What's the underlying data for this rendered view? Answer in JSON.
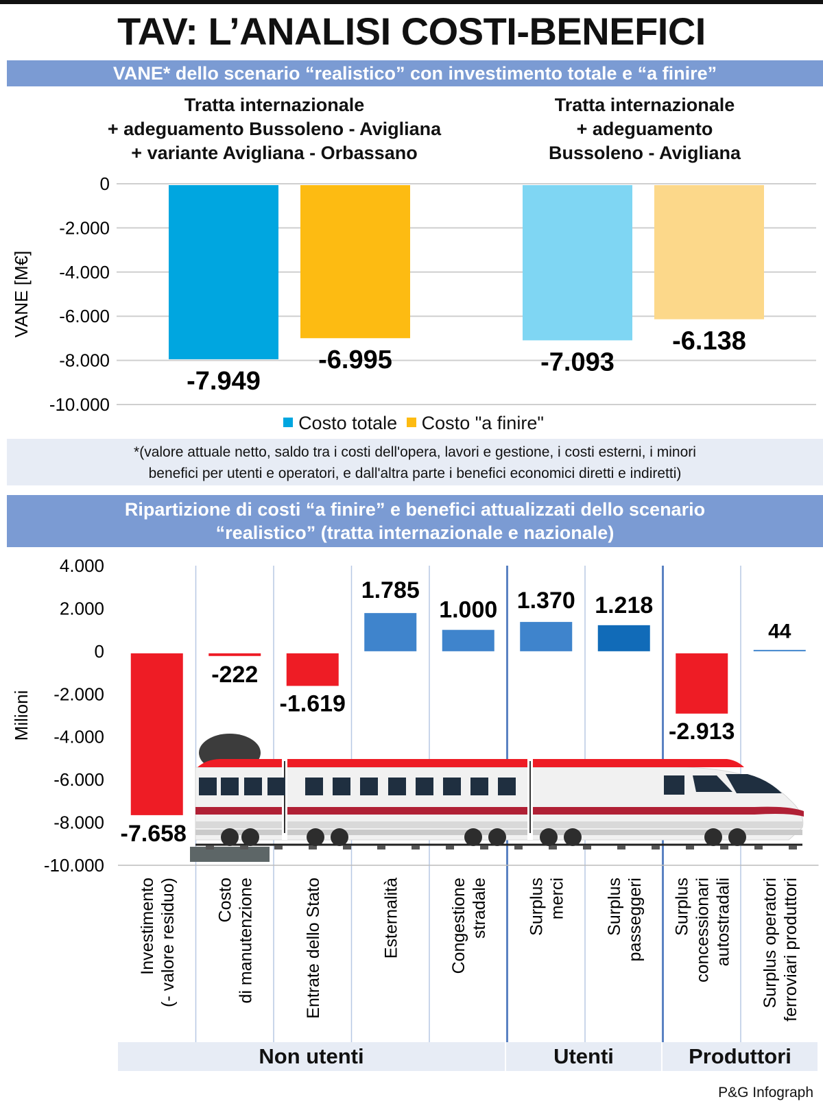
{
  "title": "TAV: L’ANALISI COSTI-BENEFICI",
  "section1": {
    "header": "VANE* dello scenario “realistico” con investimento totale e “a finire”",
    "footnote_line1": "*(valore attuale netto, saldo tra i costi dell'opera, lavori e gestione, i costi esterni, i minori",
    "footnote_line2": "benefici per utenti e operatori, e dall'altra parte i benefici economici diretti e indiretti)"
  },
  "section2": {
    "header_line1": "Ripartizione di costi “a finire” e benefici attualizzati dello scenario",
    "header_line2": "“realistico” (tratta internazionale e nazionale)"
  },
  "colors": {
    "band": "#7b9bd3",
    "costo_totale": "#00a6e0",
    "costo_a_finire": "#fdbb12",
    "costo_totale_light": "#7fd6f3",
    "costo_a_finire_light": "#fcd88a",
    "negative": "#ee1c25",
    "positive": "#3f84cc",
    "positive_dark": "#116bb8"
  },
  "credit": "P&G Infograph",
  "chart_data": [
    {
      "type": "bar",
      "ylabel": "VANE [M€]",
      "ylim": [
        -10000,
        0
      ],
      "yticks": [
        0,
        -2000,
        -4000,
        -6000,
        -8000,
        -10000
      ],
      "ytick_labels": [
        "0",
        "-2.000",
        "-4.000",
        "-6.000",
        "-8.000",
        "-10.000"
      ],
      "grid": true,
      "legend": [
        "Costo totale",
        "Costo \"a finire\""
      ],
      "legend_position": "bottom",
      "groups": [
        {
          "title_lines": [
            "Tratta internazionale",
            "+ adeguamento Bussoleno - Avigliana",
            "+ variante Avigliana - Orbassano"
          ],
          "bars": [
            {
              "series": "Costo totale",
              "value": -7949,
              "label": "-7.949"
            },
            {
              "series": "Costo \"a finire\"",
              "value": -6995,
              "label": "-6.995"
            }
          ]
        },
        {
          "title_lines": [
            "Tratta internazionale",
            "+ adeguamento",
            "Bussoleno - Avigliana"
          ],
          "bars": [
            {
              "series": "Costo totale",
              "value": -7093,
              "label": "-7.093"
            },
            {
              "series": "Costo \"a finire\"",
              "value": -6138,
              "label": "-6.138"
            }
          ]
        }
      ]
    },
    {
      "type": "bar",
      "ylabel": "Milioni",
      "ylim": [
        -10000,
        4000
      ],
      "yticks": [
        4000,
        2000,
        0,
        -2000,
        -4000,
        -6000,
        -8000,
        -10000
      ],
      "ytick_labels": [
        "4.000",
        "2.000",
        "0",
        "-2.000",
        "-4.000",
        "-6.000",
        "-8.000",
        "-10.000"
      ],
      "categories": [
        [
          "Investimento",
          "(- valore residuo)"
        ],
        [
          "Costo",
          "di manutenzione"
        ],
        [
          "Entrate dello Stato"
        ],
        [
          "Esternalità"
        ],
        [
          "Congestione",
          "stradale"
        ],
        [
          "Surplus",
          "merci"
        ],
        [
          "Surplus",
          "passeggeri"
        ],
        [
          "Surplus",
          "concessionari",
          "autostradali"
        ],
        [
          "Surplus operatori",
          "ferroviari produttori"
        ]
      ],
      "values": [
        -7658,
        -222,
        -1619,
        1785,
        1000,
        1370,
        1218,
        -2913,
        44
      ],
      "value_labels": [
        "-7.658",
        "-222",
        "-1.619",
        "1.785",
        "1.000",
        "1.370",
        "1.218",
        "-2.913",
        "44"
      ],
      "category_groups": [
        {
          "label": "Non utenti",
          "count": 5
        },
        {
          "label": "Utenti",
          "count": 2
        },
        {
          "label": "Produttori",
          "count": 2
        }
      ]
    }
  ]
}
